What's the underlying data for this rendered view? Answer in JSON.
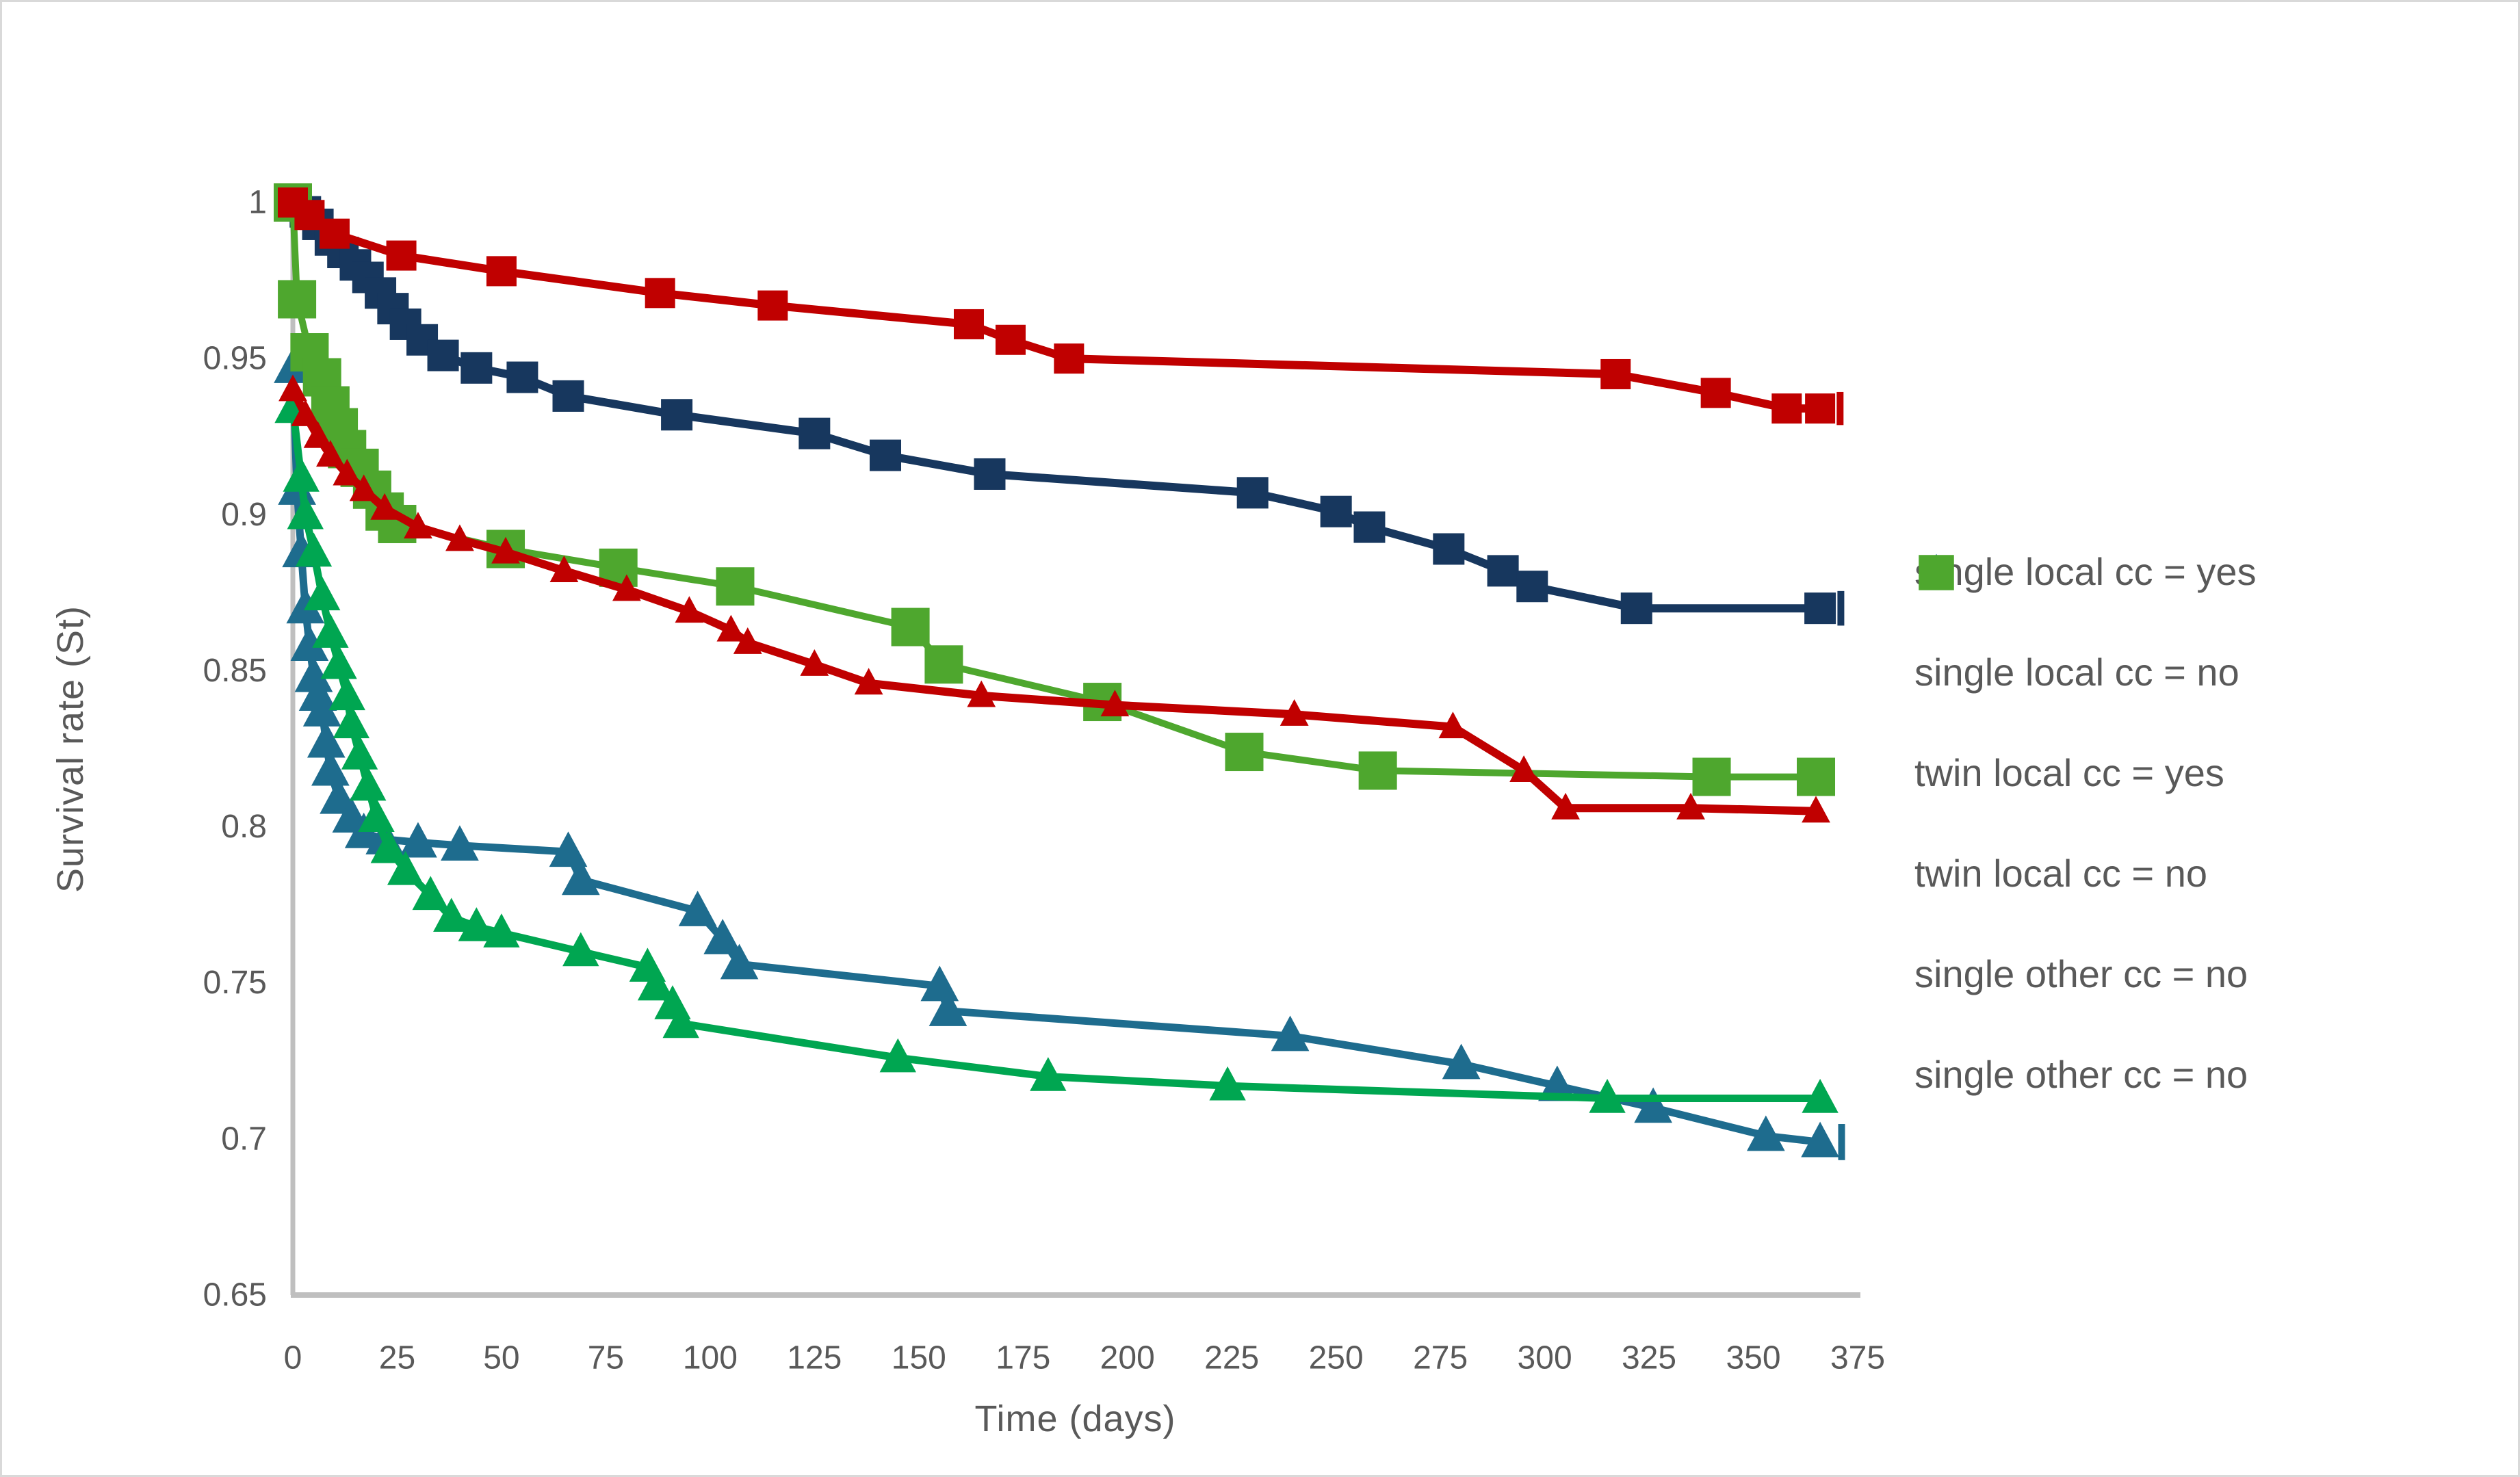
{
  "chart_data": {
    "type": "line",
    "title": "",
    "xlabel": "Time (days)",
    "ylabel": "Survival rate (St)",
    "xlim": [
      0,
      375
    ],
    "ylim": [
      0.65,
      1.0
    ],
    "xticks": [
      0,
      25,
      50,
      75,
      100,
      125,
      150,
      175,
      200,
      225,
      250,
      275,
      300,
      325,
      350,
      375
    ],
    "xtick_labels": [
      "0",
      "25",
      "50",
      "75",
      "100",
      "125",
      "150",
      "175",
      "200",
      "225",
      "250",
      "275",
      "300",
      "325",
      "350",
      "375"
    ],
    "yticks": [
      1,
      0.95,
      0.9,
      0.85,
      0.8,
      0.75,
      0.7,
      0.65
    ],
    "ytick_labels": [
      "1",
      "0.95",
      "0.9",
      "0.85",
      "0.8",
      "0.75",
      "0.7",
      "0.65"
    ],
    "grid": false,
    "legend_position": "right",
    "axis_color": "#BFBFBF",
    "text_color": "#595959",
    "series": [
      {
        "name": "single local cc = yes",
        "color": "#1E6C8E",
        "marker": "triangle-up",
        "marker_size": 48,
        "line_width": 11,
        "end_tick": true,
        "points": [
          [
            0,
            0.947
          ],
          [
            1,
            0.908
          ],
          [
            2,
            0.888
          ],
          [
            3,
            0.87
          ],
          [
            4,
            0.858
          ],
          [
            5,
            0.848
          ],
          [
            6,
            0.842
          ],
          [
            7,
            0.837
          ],
          [
            8,
            0.827
          ],
          [
            9,
            0.818
          ],
          [
            11,
            0.809
          ],
          [
            14,
            0.803
          ],
          [
            17,
            0.798
          ],
          [
            22,
            0.796
          ],
          [
            30,
            0.795
          ],
          [
            40,
            0.794
          ],
          [
            66,
            0.792
          ],
          [
            69,
            0.783
          ],
          [
            97,
            0.773
          ],
          [
            103,
            0.764
          ],
          [
            107,
            0.756
          ],
          [
            155,
            0.749
          ],
          [
            157,
            0.741
          ],
          [
            239,
            0.733
          ],
          [
            280,
            0.724
          ],
          [
            303,
            0.717
          ],
          [
            326,
            0.71
          ],
          [
            353,
            0.701
          ],
          [
            366,
            0.699
          ]
        ]
      },
      {
        "name": "single local cc = no",
        "color": "#17375E",
        "marker": "square",
        "marker_size": 46,
        "line_width": 12,
        "end_tick": true,
        "points": [
          [
            0,
            1.0
          ],
          [
            3,
            0.997
          ],
          [
            6,
            0.993
          ],
          [
            9,
            0.988
          ],
          [
            12,
            0.984
          ],
          [
            15,
            0.98
          ],
          [
            18,
            0.976
          ],
          [
            21,
            0.971
          ],
          [
            24,
            0.966
          ],
          [
            27,
            0.961
          ],
          [
            31,
            0.956
          ],
          [
            36,
            0.951
          ],
          [
            44,
            0.947
          ],
          [
            55,
            0.944
          ],
          [
            66,
            0.938
          ],
          [
            92,
            0.932
          ],
          [
            125,
            0.926
          ],
          [
            142,
            0.919
          ],
          [
            167,
            0.913
          ],
          [
            230,
            0.907
          ],
          [
            250,
            0.901
          ],
          [
            258,
            0.896
          ],
          [
            277,
            0.889
          ],
          [
            290,
            0.882
          ],
          [
            297,
            0.877
          ],
          [
            322,
            0.87
          ],
          [
            366,
            0.87
          ]
        ]
      },
      {
        "name": "twin local cc = yes",
        "color": "#C00000",
        "marker": "triangle-up",
        "marker_size": 36,
        "line_width": 12,
        "end_tick": false,
        "points": [
          [
            0,
            0.94
          ],
          [
            3,
            0.932
          ],
          [
            6,
            0.925
          ],
          [
            9,
            0.919
          ],
          [
            13,
            0.913
          ],
          [
            17,
            0.908
          ],
          [
            22,
            0.902
          ],
          [
            30,
            0.896
          ],
          [
            40,
            0.892
          ],
          [
            51,
            0.888
          ],
          [
            65,
            0.882
          ],
          [
            80,
            0.876
          ],
          [
            95,
            0.869
          ],
          [
            105,
            0.863
          ],
          [
            109,
            0.859
          ],
          [
            125,
            0.852
          ],
          [
            138,
            0.846
          ],
          [
            165,
            0.842
          ],
          [
            197,
            0.839
          ],
          [
            240,
            0.836
          ],
          [
            278,
            0.832
          ],
          [
            295,
            0.818
          ],
          [
            305,
            0.806
          ],
          [
            335,
            0.806
          ],
          [
            365,
            0.805
          ]
        ]
      },
      {
        "name": "twin local cc = no",
        "color": "#C00000",
        "marker": "square",
        "marker_size": 44,
        "line_width": 12,
        "end_tick": true,
        "points": [
          [
            0,
            1.0
          ],
          [
            4,
            0.996
          ],
          [
            10,
            0.99
          ],
          [
            26,
            0.983
          ],
          [
            50,
            0.978
          ],
          [
            88,
            0.971
          ],
          [
            115,
            0.967
          ],
          [
            162,
            0.961
          ],
          [
            172,
            0.956
          ],
          [
            186,
            0.95
          ],
          [
            317,
            0.945
          ],
          [
            341,
            0.939
          ],
          [
            358,
            0.934
          ],
          [
            366,
            0.934
          ]
        ]
      },
      {
        "name": "single other cc = no",
        "color": "#00A651",
        "marker": "triangle-up",
        "marker_size": 46,
        "line_width": 11,
        "end_tick": false,
        "points": [
          [
            0,
            0.934
          ],
          [
            2,
            0.912
          ],
          [
            3,
            0.9
          ],
          [
            5,
            0.888
          ],
          [
            7,
            0.874
          ],
          [
            9,
            0.862
          ],
          [
            11,
            0.852
          ],
          [
            13,
            0.842
          ],
          [
            14,
            0.833
          ],
          [
            16,
            0.823
          ],
          [
            18,
            0.813
          ],
          [
            20,
            0.803
          ],
          [
            23,
            0.793
          ],
          [
            27,
            0.786
          ],
          [
            33,
            0.778
          ],
          [
            38,
            0.771
          ],
          [
            44,
            0.768
          ],
          [
            50,
            0.766
          ],
          [
            69,
            0.76
          ],
          [
            85,
            0.755
          ],
          [
            87,
            0.749
          ],
          [
            91,
            0.743
          ],
          [
            93,
            0.737
          ],
          [
            145,
            0.726
          ],
          [
            181,
            0.72
          ],
          [
            224,
            0.717
          ],
          [
            315,
            0.713
          ],
          [
            366,
            0.713
          ]
        ]
      },
      {
        "name": "single other cc = no",
        "color": "#4EA72E",
        "marker": "square",
        "marker_size": 56,
        "line_width": 10,
        "end_tick": false,
        "points": [
          [
            0,
            1.0
          ],
          [
            1,
            0.969
          ],
          [
            4,
            0.952
          ],
          [
            7,
            0.944
          ],
          [
            9,
            0.935
          ],
          [
            11,
            0.928
          ],
          [
            13,
            0.921
          ],
          [
            16,
            0.915
          ],
          [
            19,
            0.908
          ],
          [
            22,
            0.901
          ],
          [
            25,
            0.897
          ],
          [
            51,
            0.889
          ],
          [
            78,
            0.883
          ],
          [
            106,
            0.877
          ],
          [
            148,
            0.864
          ],
          [
            156,
            0.852
          ],
          [
            194,
            0.84
          ],
          [
            228,
            0.824
          ],
          [
            260,
            0.818
          ],
          [
            340,
            0.816
          ],
          [
            365,
            0.816
          ]
        ]
      }
    ]
  }
}
